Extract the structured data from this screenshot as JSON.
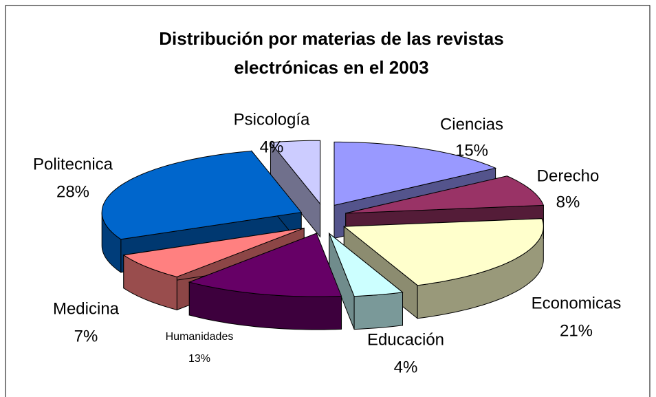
{
  "chart_data": {
    "type": "pie3d",
    "title": [
      "Distribución por materias de las revistas",
      "electrónicas en el 2003"
    ],
    "categories": [
      "Ciencias",
      "Derecho",
      "Economicas",
      "Educación",
      "Humanidades",
      "Medicina",
      "Politecnica",
      "Psicología"
    ],
    "values": [
      15,
      8,
      21,
      4,
      13,
      7,
      28,
      4
    ],
    "value_labels": [
      "15%",
      "8%",
      "21%",
      "4%",
      "13%",
      "7%",
      "28%",
      "4%"
    ],
    "colors": [
      "#9999ff",
      "#993366",
      "#ffffcc",
      "#ccffff",
      "#660066",
      "#ff8080",
      "#0066cc",
      "#ccccff"
    ]
  }
}
